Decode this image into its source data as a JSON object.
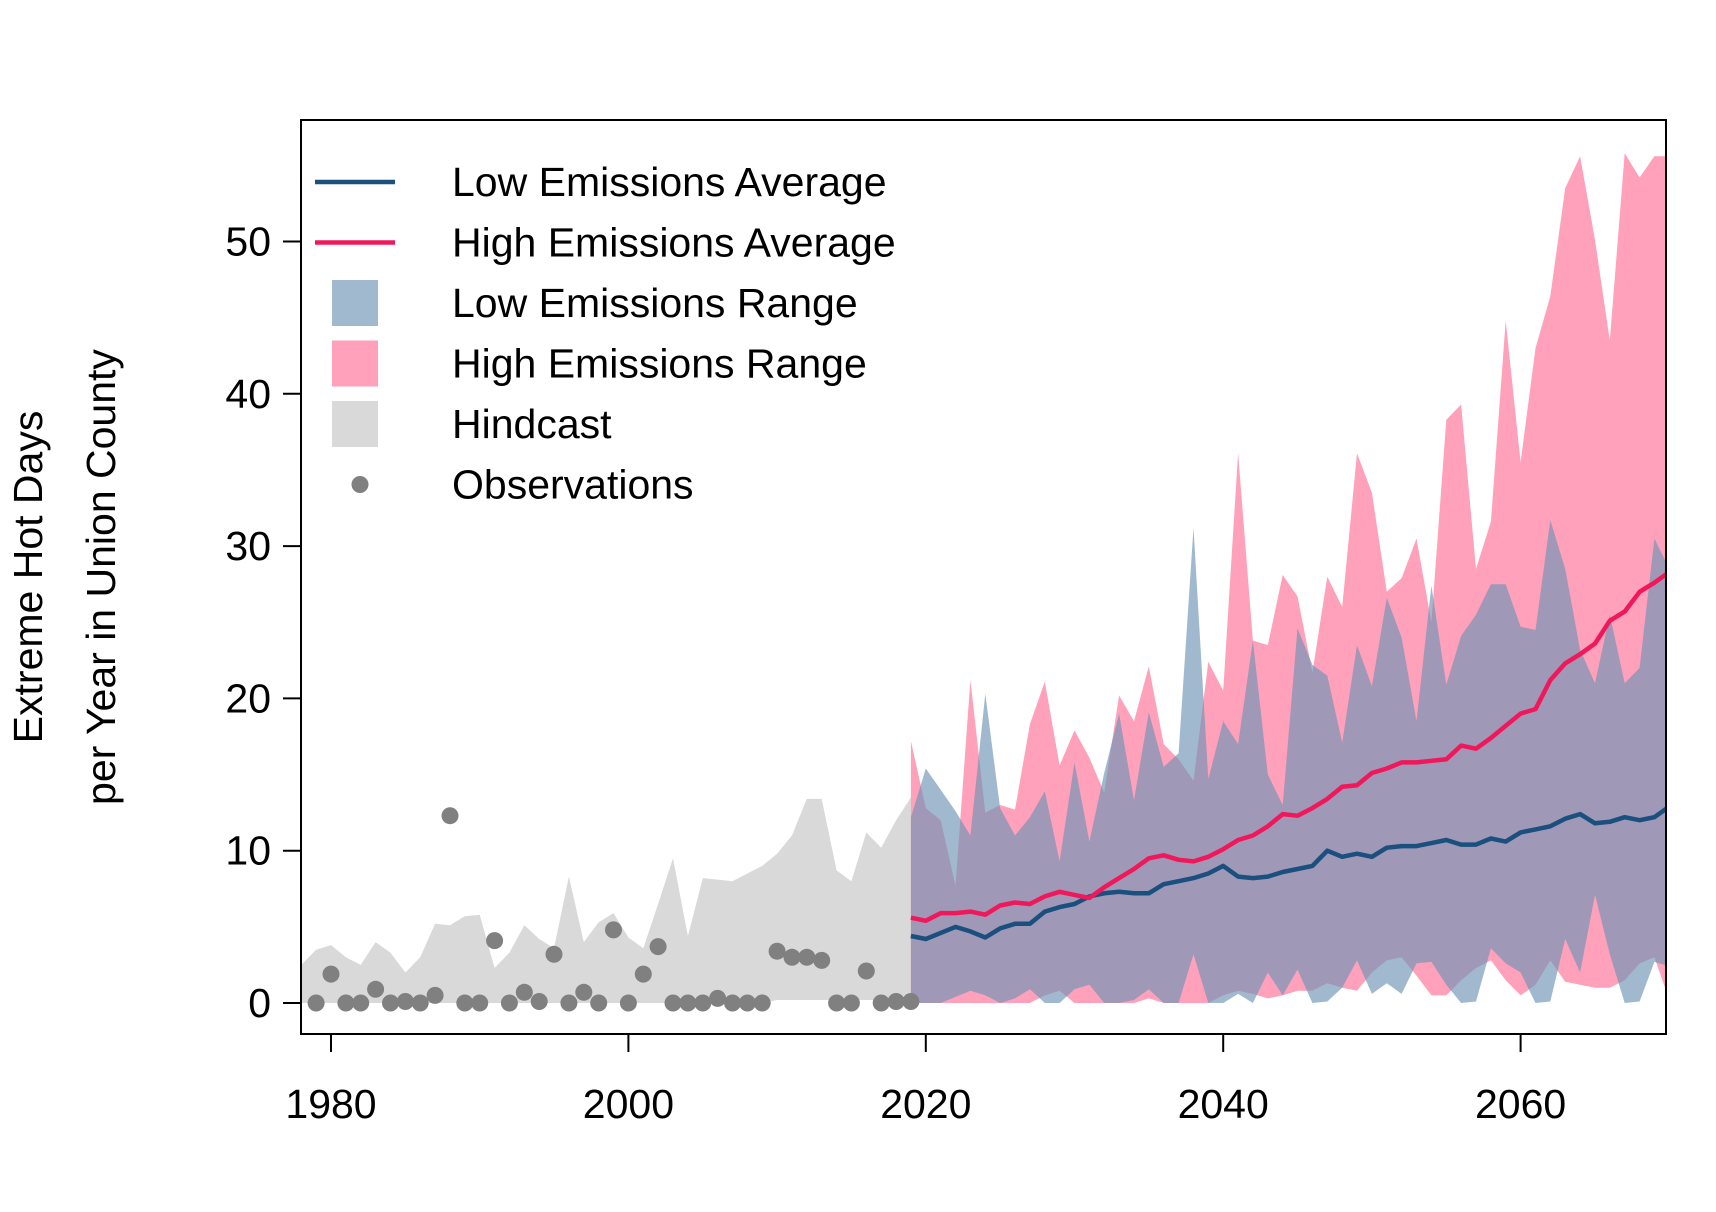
{
  "chart_data": {
    "type": "area",
    "title": "",
    "xlabel": "",
    "ylabel_line1": "Extreme Hot Days",
    "ylabel_line2": "per Year in Union County",
    "xlim": [
      1978,
      2070
    ],
    "ylim": [
      -2,
      58
    ],
    "xticks": [
      1980,
      2000,
      2020,
      2040,
      2060
    ],
    "yticks": [
      0,
      10,
      20,
      30,
      40,
      50
    ],
    "colors": {
      "low_avg": "#1a4f7e",
      "high_avg": "#f0185a",
      "low_range": "#6d93b5",
      "high_range": "#ff6f95",
      "hindcast": "#d9d9d9",
      "observations": "#808080"
    },
    "legend": {
      "position": "top-left",
      "entries": [
        {
          "key": "low_avg",
          "label": "Low Emissions Average",
          "symbol": "line"
        },
        {
          "key": "high_avg",
          "label": "High Emissions Average",
          "symbol": "line"
        },
        {
          "key": "low_range",
          "label": "Low Emissions Range",
          "symbol": "box"
        },
        {
          "key": "high_range",
          "label": "High Emissions Range",
          "symbol": "box"
        },
        {
          "key": "hindcast",
          "label": "Hindcast",
          "symbol": "box"
        },
        {
          "key": "observations",
          "label": "Observations",
          "symbol": "point"
        }
      ]
    },
    "hindcast": {
      "x": [
        1978,
        1979,
        1980,
        1981,
        1982,
        1983,
        1984,
        1985,
        1986,
        1987,
        1988,
        1989,
        1990,
        1991,
        1992,
        1993,
        1994,
        1995,
        1996,
        1997,
        1998,
        1999,
        2000,
        2001,
        2002,
        2003,
        2004,
        2005,
        2006,
        2007,
        2008,
        2009,
        2010,
        2011,
        2012,
        2013,
        2014,
        2015,
        2016,
        2017,
        2018,
        2019
      ],
      "upper": [
        2.5,
        3.5,
        3.8,
        3.0,
        2.5,
        4.0,
        3.3,
        2.0,
        3.0,
        5.2,
        5.1,
        5.7,
        5.8,
        2.3,
        3.3,
        5.1,
        4.2,
        3.6,
        8.3,
        4.0,
        5.3,
        5.9,
        4.3,
        3.6,
        6.5,
        9.5,
        4.4,
        8.2,
        8.1,
        8.0,
        8.5,
        9.0,
        9.8,
        11.0,
        13.4,
        13.4,
        8.7,
        8.0,
        11.2,
        10.2,
        12.0,
        13.5
      ],
      "lower": [
        0,
        0,
        0,
        0,
        0,
        0,
        0,
        0,
        0,
        0,
        0,
        0,
        0,
        0,
        0,
        0,
        0,
        0,
        0,
        0,
        0,
        0,
        0,
        0,
        0,
        0,
        0,
        0,
        0,
        0,
        0,
        0,
        0.2,
        0.2,
        0.2,
        0.2,
        0.2,
        0.2,
        0.2,
        0.2,
        0.2,
        0.2
      ]
    },
    "future_x": [
      2019,
      2020,
      2021,
      2022,
      2023,
      2024,
      2025,
      2026,
      2027,
      2028,
      2029,
      2030,
      2031,
      2032,
      2033,
      2034,
      2035,
      2036,
      2037,
      2038,
      2039,
      2040,
      2041,
      2042,
      2043,
      2044,
      2045,
      2046,
      2047,
      2048,
      2049,
      2050,
      2051,
      2052,
      2053,
      2054,
      2055,
      2056,
      2057,
      2058,
      2059,
      2060,
      2061,
      2062,
      2063,
      2064,
      2065,
      2066,
      2067,
      2068,
      2069,
      2070
    ],
    "high_range": {
      "upper": [
        17.2,
        12.8,
        12.0,
        7.7,
        21.2,
        12.5,
        13.0,
        12.7,
        18.3,
        21.1,
        15.6,
        17.9,
        16.1,
        13.8,
        20.2,
        18.5,
        22.1,
        17.0,
        16.0,
        14.6,
        22.4,
        20.5,
        36.1,
        23.8,
        23.5,
        28.1,
        26.7,
        21.7,
        28.0,
        26.0,
        36.1,
        33.5,
        27.0,
        27.9,
        30.5,
        25.0,
        38.3,
        39.3,
        28.5,
        31.6,
        44.8,
        35.5,
        43.0,
        46.4,
        53.5,
        55.6,
        50.1,
        43.5,
        55.8,
        54.2,
        55.6,
        55.6
      ],
      "lower": [
        0,
        0,
        0,
        0,
        0,
        0,
        0,
        0,
        0,
        0.5,
        0.8,
        0,
        0,
        0,
        0,
        0,
        0.3,
        0,
        0,
        0,
        0,
        0.5,
        0.8,
        0.6,
        0.3,
        0.5,
        0.8,
        0.8,
        1.3,
        1.0,
        0.8,
        2.0,
        2.8,
        3.0,
        1.8,
        0.5,
        0.5,
        1.5,
        2.3,
        2.8,
        1.5,
        0.5,
        1.2,
        2.8,
        1.4,
        1.2,
        1.0,
        1.0,
        1.5,
        2.6,
        3.0,
        0.2
      ]
    },
    "low_range": {
      "upper": [
        12.2,
        15.4,
        14.0,
        12.6,
        11.0,
        20.3,
        12.8,
        11.0,
        12.2,
        13.9,
        9.3,
        15.8,
        10.6,
        15.1,
        19.0,
        13.3,
        19.1,
        15.5,
        16.4,
        31.2,
        14.7,
        18.5,
        17.0,
        23.8,
        15.0,
        13.0,
        24.6,
        22.2,
        21.5,
        17.1,
        23.5,
        20.8,
        26.6,
        24.0,
        18.5,
        27.4,
        20.9,
        24.1,
        25.5,
        27.5,
        27.5,
        24.7,
        24.5,
        31.7,
        28.5,
        23.2,
        21.0,
        25.5,
        21.0,
        22.0,
        30.5,
        28.5
      ],
      "lower": [
        0,
        0,
        0,
        0.4,
        0.8,
        0.5,
        0,
        0.3,
        0.9,
        0,
        0,
        0.9,
        1.2,
        0,
        0,
        0.2,
        0.9,
        0,
        0,
        3.2,
        0,
        0,
        0.6,
        0,
        2.0,
        0.5,
        2.2,
        0,
        0.1,
        1.0,
        2.8,
        0.6,
        1.3,
        0.6,
        2.6,
        2.7,
        1.2,
        0,
        0.1,
        3.6,
        2.6,
        2.0,
        0,
        0.1,
        4.2,
        2.0,
        7.1,
        3.2,
        0,
        0.1,
        2.7,
        2.4
      ]
    },
    "series": [
      {
        "name": "Low Emissions Average",
        "key": "low_avg",
        "x_start": 2019,
        "values": [
          4.4,
          4.2,
          4.6,
          5.0,
          4.7,
          4.3,
          4.9,
          5.2,
          5.2,
          6.0,
          6.3,
          6.5,
          7.0,
          7.2,
          7.3,
          7.2,
          7.2,
          7.8,
          8.0,
          8.2,
          8.5,
          9.0,
          8.3,
          8.2,
          8.3,
          8.6,
          8.8,
          9.0,
          10.0,
          9.6,
          9.8,
          9.6,
          10.2,
          10.3,
          10.3,
          10.5,
          10.7,
          10.4,
          10.4,
          10.8,
          10.6,
          11.2,
          11.4,
          11.6,
          12.1,
          12.4,
          11.8,
          11.9,
          12.2,
          12.0,
          12.2,
          12.9
        ]
      },
      {
        "name": "High Emissions Average",
        "key": "high_avg",
        "x_start": 2019,
        "values": [
          5.6,
          5.4,
          5.9,
          5.9,
          6.0,
          5.8,
          6.4,
          6.6,
          6.5,
          7.0,
          7.3,
          7.1,
          6.9,
          7.6,
          8.2,
          8.8,
          9.5,
          9.7,
          9.4,
          9.3,
          9.6,
          10.1,
          10.7,
          11.0,
          11.6,
          12.4,
          12.3,
          12.8,
          13.4,
          14.2,
          14.3,
          15.1,
          15.4,
          15.8,
          15.8,
          15.9,
          16.0,
          16.9,
          16.7,
          17.4,
          18.2,
          19.0,
          19.3,
          21.2,
          22.3,
          22.9,
          23.6,
          25.1,
          25.7,
          27.0,
          27.6,
          28.3
        ]
      }
    ],
    "observations": {
      "x": [
        1979,
        1980,
        1981,
        1982,
        1983,
        1984,
        1985,
        1986,
        1987,
        1988,
        1989,
        1990,
        1991,
        1992,
        1993,
        1994,
        1995,
        1996,
        1997,
        1998,
        1999,
        2000,
        2001,
        2002,
        2003,
        2004,
        2005,
        2006,
        2007,
        2008,
        2009,
        2010,
        2011,
        2012,
        2013,
        2014,
        2015,
        2016,
        2017,
        2018,
        2019
      ],
      "y": [
        0,
        1.9,
        0,
        0,
        0.9,
        0,
        0.1,
        0,
        0.5,
        12.3,
        0,
        0,
        4.1,
        0,
        0.7,
        0.1,
        3.2,
        0,
        0.7,
        0,
        4.8,
        0,
        1.9,
        3.7,
        0,
        0,
        0,
        0.3,
        0,
        0,
        0,
        3.4,
        3.0,
        3.0,
        2.8,
        0,
        0,
        2.1,
        0,
        0.1,
        0.1
      ]
    }
  }
}
